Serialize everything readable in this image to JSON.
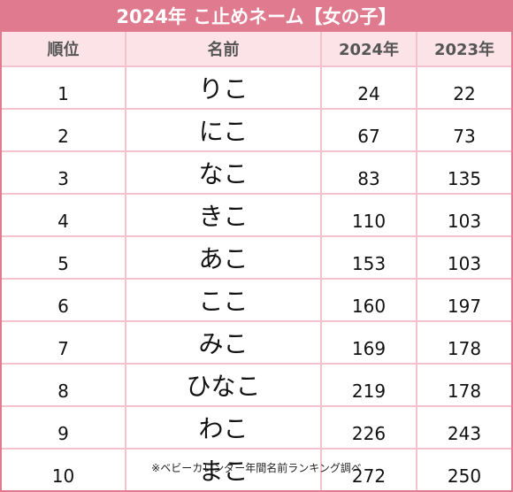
{
  "header": {
    "title": "2024年 こ止めネーム【女の子】"
  },
  "table": {
    "columns": [
      "順位",
      "名前",
      "2024年",
      "2023年"
    ],
    "rows": [
      [
        1,
        "りこ",
        24,
        22
      ],
      [
        2,
        "にこ",
        67,
        73
      ],
      [
        3,
        "なこ",
        83,
        135
      ],
      [
        4,
        "きこ",
        110,
        103
      ],
      [
        5,
        "あこ",
        153,
        103
      ],
      [
        6,
        "ここ",
        160,
        197
      ],
      [
        7,
        "みこ",
        169,
        178
      ],
      [
        8,
        "ひなこ",
        219,
        178
      ],
      [
        9,
        "わこ",
        226,
        243
      ],
      [
        10,
        "まこ",
        272,
        250
      ]
    ]
  },
  "footnote": "※ベビーカレンダー年間名前ランキング調べ"
}
